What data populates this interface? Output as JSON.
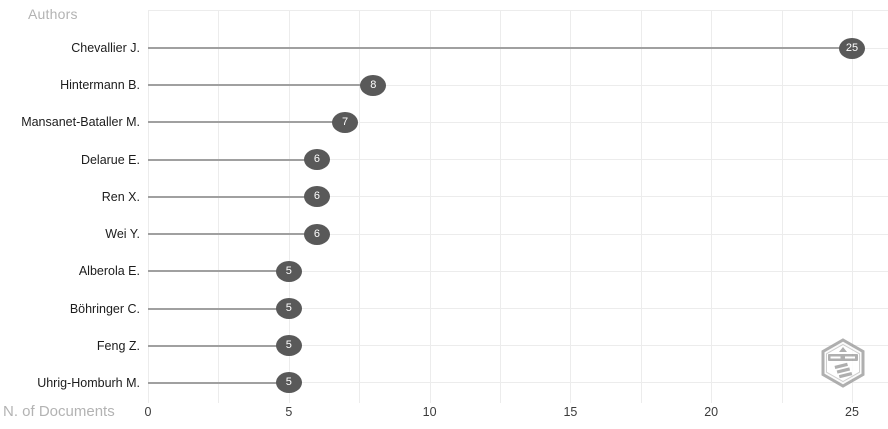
{
  "y_axis_title": "Authors",
  "x_axis_title": "N. of Documents",
  "chart_data": {
    "type": "bar",
    "variant": "lollipop",
    "orientation": "horizontal",
    "title": "",
    "xlabel": "N. of Documents",
    "ylabel": "Authors",
    "categories": [
      "Chevallier J.",
      "Hintermann B.",
      "Mansanet-Bataller M.",
      "Delarue E.",
      "Ren X.",
      "Wei Y.",
      "Alberola E.",
      "Böhringer C.",
      "Feng Z.",
      "Uhrig-Homburh M."
    ],
    "values": [
      25,
      8,
      7,
      6,
      6,
      6,
      5,
      5,
      5,
      5
    ],
    "point_labels": [
      "25",
      "8",
      "7",
      "6",
      "6",
      "6",
      "5",
      "5",
      "5",
      "5"
    ],
    "xlim": [
      0,
      26.3
    ],
    "x_tick_values": [
      0,
      5,
      10,
      15,
      20,
      25
    ],
    "x_tick_labels": [
      "0",
      "5",
      "10",
      "15",
      "20",
      "25"
    ],
    "x_minor_grid_step": 2.5,
    "grid": true,
    "legend": "none"
  },
  "colors": {
    "dot_fill": "#595959",
    "dot_text": "#ffffff",
    "stem": "#a0a0a0",
    "grid": "#ececec",
    "category_text": "#1c1c1c",
    "tick_text": "#3b3b3b",
    "axis_title_text": "#b3b3b3",
    "background": "#ffffff",
    "logo_gray": "#9c9c9c"
  },
  "watermark": {
    "label": "bibliometrix logo"
  }
}
